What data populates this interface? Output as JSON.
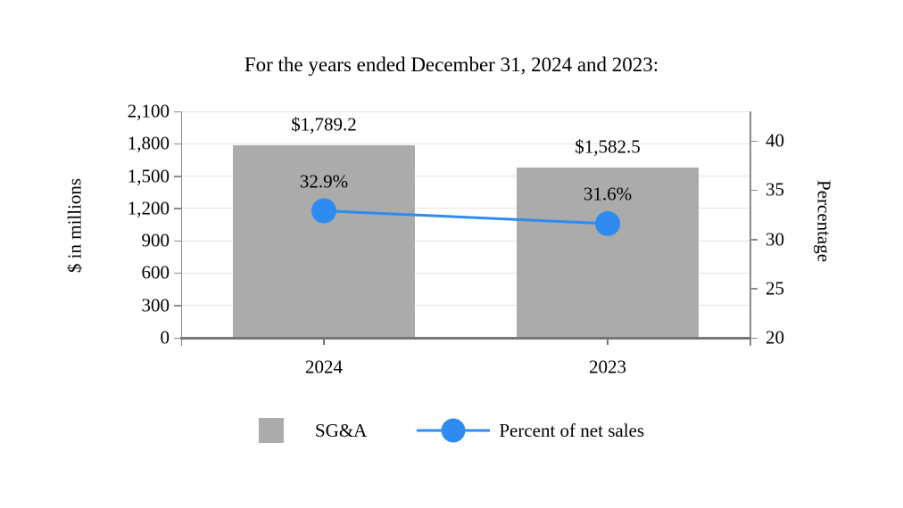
{
  "title": "For the years ended December 31, 2024 and 2023:",
  "chart_data": {
    "type": "bar",
    "subtype": "combo-bar-line",
    "categories": [
      "2024",
      "2023"
    ],
    "series": [
      {
        "name": "SG&A",
        "type": "bar",
        "axis": "left",
        "values": [
          1789.2,
          1582.5
        ],
        "data_labels": [
          "$1,789.2",
          "$1,582.5"
        ]
      },
      {
        "name": "Percent of net sales",
        "type": "line",
        "axis": "right",
        "values": [
          32.9,
          31.6
        ],
        "data_labels": [
          "32.9%",
          "31.6%"
        ]
      }
    ],
    "left_axis": {
      "title": "$ in millions",
      "min": 0,
      "max": 2100,
      "tick_values": [
        2100,
        1800,
        1500,
        1200,
        900,
        600,
        300,
        0
      ],
      "tick_labels": [
        "2,100",
        "1,800",
        "1,500",
        "1,200",
        "900",
        "600",
        "300",
        "0"
      ]
    },
    "right_axis": {
      "title": "Percentage",
      "min": 20,
      "max": 43,
      "tick_values": [
        40,
        35,
        30,
        25,
        20
      ],
      "tick_labels": [
        "40",
        "35",
        "30",
        "25",
        "20"
      ]
    },
    "legend": [
      {
        "label": "SG&A",
        "swatch": "square"
      },
      {
        "label": "Percent of net sales",
        "swatch": "line-marker"
      }
    ],
    "grid": true,
    "legend_position": "bottom"
  },
  "colors": {
    "bar": "#ABABAB",
    "line": "#2E8CF0",
    "gridline": "#E4E4E4",
    "axis_line": "#8A8A8A",
    "bottom_axis_line": "#767676",
    "text": "#000000",
    "background": "#FFFFFF"
  }
}
